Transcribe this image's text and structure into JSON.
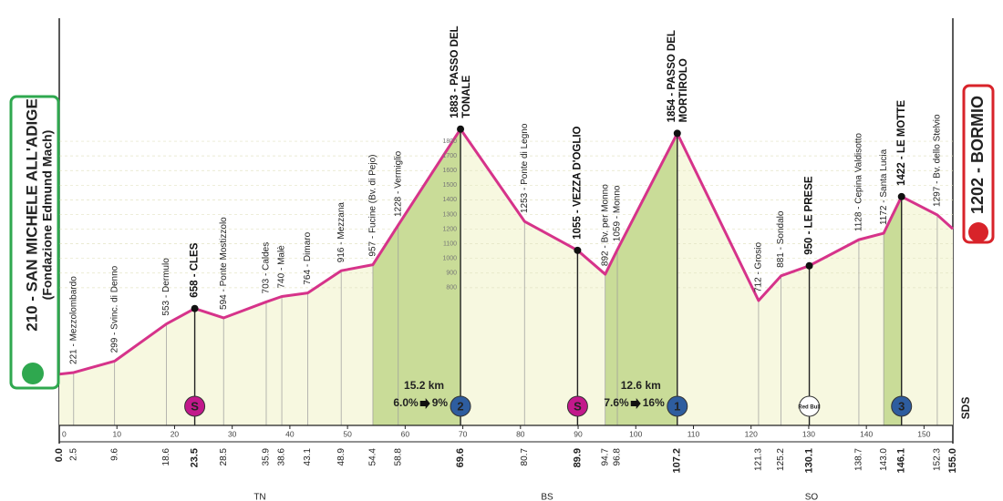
{
  "chart_data": {
    "type": "area",
    "start": {
      "label": "210 - SAN MICHELE ALL'ADIGE",
      "sublabel": "(Fondazione Edmund Mach)",
      "color": "#2fa84f"
    },
    "finish": {
      "label": "1202 - BORMIO",
      "color": "#d8232a"
    },
    "x": [
      0.0,
      2.5,
      9.6,
      18.6,
      23.5,
      28.5,
      35.9,
      38.6,
      43.1,
      48.9,
      54.4,
      58.8,
      69.6,
      80.7,
      89.9,
      94.7,
      96.8,
      107.2,
      121.3,
      125.2,
      130.1,
      138.7,
      143.0,
      146.1,
      152.3,
      155.0
    ],
    "x_labels": [
      "0.0",
      "2.5",
      "9.6",
      "18.6",
      "23.5",
      "28.5",
      "35.9",
      "38.6",
      "43.1",
      "48.9",
      "54.4",
      "58.8",
      "69.6",
      "80.7",
      "89.9",
      "94.7",
      "96.8",
      "107.2",
      "121.3",
      "125.2",
      "130.1",
      "138.7",
      "143.0",
      "146.1",
      "152.3",
      "155.0"
    ],
    "values": [
      210,
      221,
      299,
      553,
      658,
      594,
      703,
      740,
      764,
      916,
      957,
      1228,
      1883,
      1253,
      1055,
      892,
      1059,
      1854,
      712,
      881,
      950,
      1128,
      1172,
      1422,
      1297,
      1202
    ],
    "point_labels": [
      null,
      "221 - Mezzolombardo",
      "299 - Svinc. di Denno",
      "553 - Dermulo",
      "658 - CLES",
      "594 - Ponte Mostizzolo",
      "703 - Caldes",
      "740 - Malè",
      "764 - Dimaro",
      "916 - Mezzana",
      "957 - Fucine (Bv. di Pejo)",
      "1228 - Vermiglio",
      [
        "1883 - PASSO DEL",
        "TONALE"
      ],
      "1253 - Ponte di Legno",
      "1055 - VEZZA D'OGLIO",
      "892 - Bv. per Monno",
      "1059 - Monno",
      [
        "1854 - PASSO DEL",
        "MORTIROLO"
      ],
      "712 - Grosio",
      "881 - Sondalo",
      "950 - LE PRESE",
      "1128 - Cepina Valdisotto",
      "1172 - Santa Lucia",
      "1422 - LE MOTTE",
      "1297 - Bv. dello Stelvio",
      null
    ],
    "bold": [
      true,
      false,
      false,
      false,
      true,
      false,
      false,
      false,
      false,
      false,
      false,
      false,
      true,
      false,
      true,
      false,
      false,
      true,
      false,
      false,
      true,
      false,
      false,
      true,
      false,
      true
    ],
    "color": "#d6338a",
    "fill": "#f7f8e0",
    "climb_color": "#c9dc98",
    "climbs": [
      [
        54.4,
        69.6
      ],
      [
        94.7,
        107.2
      ],
      [
        143.0,
        146.1
      ]
    ],
    "markers": [
      {
        "x": 23.5,
        "symbol": "S",
        "color": "#c2188b",
        "text_color": "#ffffff"
      },
      {
        "x": 69.6,
        "symbol": "2",
        "color": "#2e5d9f",
        "text_color": "#ffffff",
        "climb": {
          "distance": "15.2 km",
          "avg": "6.0%",
          "max": "9%",
          "max_color": "#111111"
        }
      },
      {
        "x": 89.9,
        "symbol": "S",
        "color": "#c2188b",
        "text_color": "#ffffff"
      },
      {
        "x": 107.2,
        "symbol": "1",
        "color": "#2e5d9f",
        "text_color": "#ffffff",
        "climb": {
          "distance": "12.6 km",
          "avg": "7.6%",
          "max": "16%",
          "max_color": "#e0202a"
        }
      },
      {
        "x": 130.1,
        "symbol": "Red Bull",
        "color": "#ffffff",
        "text_color": "#d8232a"
      },
      {
        "x": 146.1,
        "symbol": "3",
        "color": "#2e5d9f",
        "text_color": "#ffffff"
      }
    ],
    "xlim": [
      0,
      155
    ],
    "xticks": [
      0,
      10,
      20,
      30,
      40,
      50,
      60,
      70,
      80,
      90,
      100,
      110,
      120,
      130,
      140,
      150
    ],
    "ylim": [
      -140,
      2640
    ],
    "yticks": [
      800,
      900,
      1000,
      1100,
      1200,
      1300,
      1400,
      1500,
      1600,
      1700,
      1800
    ],
    "grid": true,
    "province_labels": [
      "TN",
      "BS",
      "SO"
    ],
    "credit": "SDS"
  }
}
